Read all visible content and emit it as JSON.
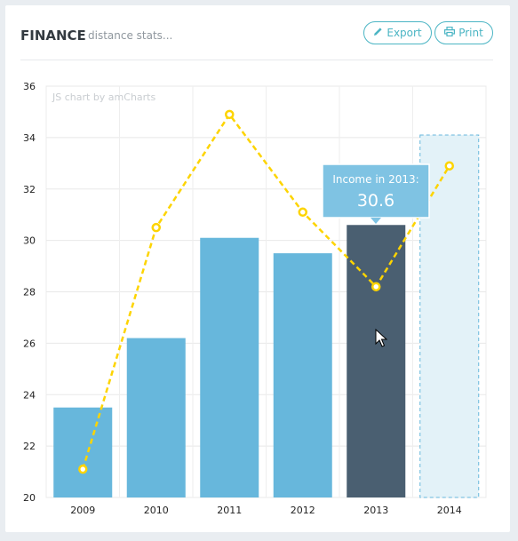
{
  "header": {
    "title": "FINANCE",
    "subtitle": "distance stats...",
    "export_label": "Export",
    "print_label": "Print",
    "export_icon": "pencil-icon",
    "print_icon": "printer-icon"
  },
  "chart": {
    "credit": "JS chart by amCharts",
    "tooltip_title": "Income in 2013:",
    "tooltip_value": "30.6"
  },
  "colors": {
    "bar": "#67b7dc",
    "bar_hover": "#4a5f71",
    "bar_projected_fill": "#e3f2f8",
    "bar_projected_stroke": "#67b7dc",
    "line": "#fdd400",
    "accent": "#4bb5c4",
    "tooltip": "#7fc3e3"
  },
  "chart_data": {
    "type": "bar",
    "categories": [
      "2009",
      "2010",
      "2011",
      "2012",
      "2013",
      "2014"
    ],
    "ylim": [
      20,
      36
    ],
    "y_ticks": [
      20,
      22,
      24,
      26,
      28,
      30,
      32,
      34,
      36
    ],
    "grid": true,
    "series": [
      {
        "values": [
          23.5,
          26.2,
          30.1,
          29.5,
          30.6,
          34.1
        ],
        "kind": "bar",
        "projected": [
          false,
          false,
          false,
          false,
          false,
          true
        ],
        "highlighted": "2013"
      },
      {
        "values": [
          21.1,
          30.5,
          34.9,
          31.1,
          28.2,
          32.9
        ],
        "kind": "line",
        "dashed": true
      }
    ]
  }
}
